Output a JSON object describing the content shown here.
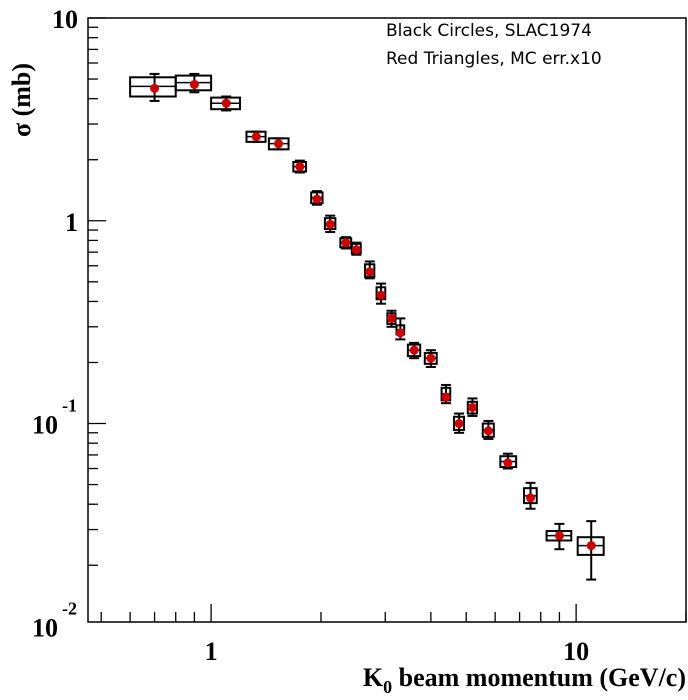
{
  "chart_data": {
    "type": "scatter",
    "legend": [
      "Black Circles, SLAC1974",
      "Red Triangles, MC err.x10"
    ],
    "legend_position": "top-right",
    "xlabel": {
      "main": "K",
      "sub": "0",
      "rest": " beam momentum (GeV/c)"
    },
    "ylabel": {
      "main": "σ (mb)"
    },
    "x_scale": "log",
    "y_scale": "log",
    "xlim": [
      0.46,
      20
    ],
    "ylim": [
      0.0105,
      10
    ],
    "grid": false,
    "x_tick_labels": [
      {
        "value": 1,
        "base": "1",
        "exp": ""
      },
      {
        "value": 10,
        "base": "10",
        "exp": ""
      }
    ],
    "y_tick_labels": [
      {
        "value": 10,
        "base": "10",
        "exp": ""
      },
      {
        "value": 1,
        "base": "1",
        "exp": ""
      },
      {
        "value": 0.1,
        "base": "10",
        "exp": "-1"
      },
      {
        "value": 0.01,
        "base": "10",
        "exp": "-2"
      }
    ],
    "series": [
      {
        "name": "Black Circles, SLAC1974",
        "color": "#000000",
        "marker": "box",
        "points": [
          {
            "x": 0.7,
            "y": 4.6,
            "xlo": 0.6,
            "xhi": 0.8,
            "ylo": 3.9,
            "yhi": 5.3,
            "blo": 4.1,
            "bhi": 5.1
          },
          {
            "x": 0.9,
            "y": 4.8,
            "xlo": 0.8,
            "xhi": 1.0,
            "ylo": 4.3,
            "yhi": 5.3,
            "blo": 4.4,
            "bhi": 5.2
          },
          {
            "x": 1.1,
            "y": 3.8,
            "xlo": 1.0,
            "xhi": 1.2,
            "ylo": 3.5,
            "yhi": 4.1,
            "blo": 3.55,
            "bhi": 4.05
          },
          {
            "x": 1.33,
            "y": 2.6,
            "xlo": 1.25,
            "xhi": 1.41,
            "ylo": 2.45,
            "yhi": 2.75,
            "blo": 2.45,
            "bhi": 2.75
          },
          {
            "x": 1.53,
            "y": 2.4,
            "xlo": 1.44,
            "xhi": 1.63,
            "ylo": 2.25,
            "yhi": 2.55,
            "blo": 2.25,
            "bhi": 2.55
          },
          {
            "x": 1.75,
            "y": 1.85,
            "xlo": 1.68,
            "xhi": 1.82,
            "ylo": 1.73,
            "yhi": 1.98,
            "blo": 1.75,
            "bhi": 1.95
          },
          {
            "x": 1.95,
            "y": 1.3,
            "xlo": 1.88,
            "xhi": 2.02,
            "ylo": 1.2,
            "yhi": 1.4,
            "blo": 1.22,
            "bhi": 1.38
          },
          {
            "x": 2.12,
            "y": 0.97,
            "xlo": 2.05,
            "xhi": 2.19,
            "ylo": 0.88,
            "yhi": 1.06,
            "blo": 0.91,
            "bhi": 1.03
          },
          {
            "x": 2.34,
            "y": 0.78,
            "xlo": 2.26,
            "xhi": 2.42,
            "ylo": 0.73,
            "yhi": 0.83,
            "blo": 0.74,
            "bhi": 0.82
          },
          {
            "x": 2.5,
            "y": 0.73,
            "xlo": 2.43,
            "xhi": 2.57,
            "ylo": 0.68,
            "yhi": 0.78,
            "blo": 0.69,
            "bhi": 0.77
          },
          {
            "x": 2.72,
            "y": 0.57,
            "xlo": 2.64,
            "xhi": 2.8,
            "ylo": 0.52,
            "yhi": 0.63,
            "blo": 0.53,
            "bhi": 0.61
          },
          {
            "x": 2.92,
            "y": 0.44,
            "xlo": 2.84,
            "xhi": 3.0,
            "ylo": 0.39,
            "yhi": 0.49,
            "blo": 0.41,
            "bhi": 0.47
          },
          {
            "x": 3.12,
            "y": 0.33,
            "xlo": 3.04,
            "xhi": 3.2,
            "ylo": 0.3,
            "yhi": 0.36,
            "blo": 0.31,
            "bhi": 0.35
          },
          {
            "x": 3.3,
            "y": 0.29,
            "xlo": 3.22,
            "xhi": 3.38,
            "ylo": 0.26,
            "yhi": 0.33,
            "blo": 0.275,
            "bhi": 0.305
          },
          {
            "x": 3.6,
            "y": 0.23,
            "xlo": 3.46,
            "xhi": 3.74,
            "ylo": 0.21,
            "yhi": 0.25,
            "blo": 0.215,
            "bhi": 0.245
          },
          {
            "x": 4.0,
            "y": 0.21,
            "xlo": 3.85,
            "xhi": 4.15,
            "ylo": 0.19,
            "yhi": 0.23,
            "blo": 0.197,
            "bhi": 0.223
          },
          {
            "x": 4.4,
            "y": 0.14,
            "xlo": 4.28,
            "xhi": 4.52,
            "ylo": 0.126,
            "yhi": 0.155,
            "blo": 0.13,
            "bhi": 0.15
          },
          {
            "x": 4.78,
            "y": 0.1,
            "xlo": 4.63,
            "xhi": 4.93,
            "ylo": 0.09,
            "yhi": 0.112,
            "blo": 0.093,
            "bhi": 0.108
          },
          {
            "x": 5.2,
            "y": 0.12,
            "xlo": 5.05,
            "xhi": 5.35,
            "ylo": 0.109,
            "yhi": 0.133,
            "blo": 0.112,
            "bhi": 0.128
          },
          {
            "x": 5.75,
            "y": 0.093,
            "xlo": 5.55,
            "xhi": 5.95,
            "ylo": 0.084,
            "yhi": 0.103,
            "blo": 0.086,
            "bhi": 0.1
          },
          {
            "x": 6.5,
            "y": 0.065,
            "xlo": 6.2,
            "xhi": 6.85,
            "ylo": 0.06,
            "yhi": 0.071,
            "blo": 0.061,
            "bhi": 0.069
          },
          {
            "x": 7.5,
            "y": 0.044,
            "xlo": 7.2,
            "xhi": 7.8,
            "ylo": 0.038,
            "yhi": 0.051,
            "blo": 0.0405,
            "bhi": 0.048
          },
          {
            "x": 9.0,
            "y": 0.028,
            "xlo": 8.3,
            "xhi": 9.7,
            "ylo": 0.024,
            "yhi": 0.032,
            "blo": 0.0265,
            "bhi": 0.0295
          },
          {
            "x": 11.0,
            "y": 0.025,
            "xlo": 10.1,
            "xhi": 11.9,
            "ylo": 0.017,
            "yhi": 0.033,
            "blo": 0.0225,
            "bhi": 0.0275
          }
        ]
      },
      {
        "name": "Red Triangles, MC err.x10",
        "color": "#cc0000",
        "marker": "dot",
        "points": [
          {
            "x": 0.7,
            "y": 4.5
          },
          {
            "x": 0.9,
            "y": 4.7
          },
          {
            "x": 1.1,
            "y": 3.8
          },
          {
            "x": 1.33,
            "y": 2.6
          },
          {
            "x": 1.53,
            "y": 2.4
          },
          {
            "x": 1.75,
            "y": 1.85
          },
          {
            "x": 1.95,
            "y": 1.28
          },
          {
            "x": 2.12,
            "y": 0.96
          },
          {
            "x": 2.34,
            "y": 0.78
          },
          {
            "x": 2.5,
            "y": 0.72
          },
          {
            "x": 2.72,
            "y": 0.56
          },
          {
            "x": 2.92,
            "y": 0.43
          },
          {
            "x": 3.12,
            "y": 0.33
          },
          {
            "x": 3.3,
            "y": 0.28
          },
          {
            "x": 3.6,
            "y": 0.23
          },
          {
            "x": 4.0,
            "y": 0.21
          },
          {
            "x": 4.4,
            "y": 0.135
          },
          {
            "x": 4.78,
            "y": 0.1
          },
          {
            "x": 5.2,
            "y": 0.12
          },
          {
            "x": 5.75,
            "y": 0.092
          },
          {
            "x": 6.5,
            "y": 0.064
          },
          {
            "x": 7.5,
            "y": 0.043
          },
          {
            "x": 9.0,
            "y": 0.028
          },
          {
            "x": 11.0,
            "y": 0.025
          }
        ]
      }
    ]
  }
}
